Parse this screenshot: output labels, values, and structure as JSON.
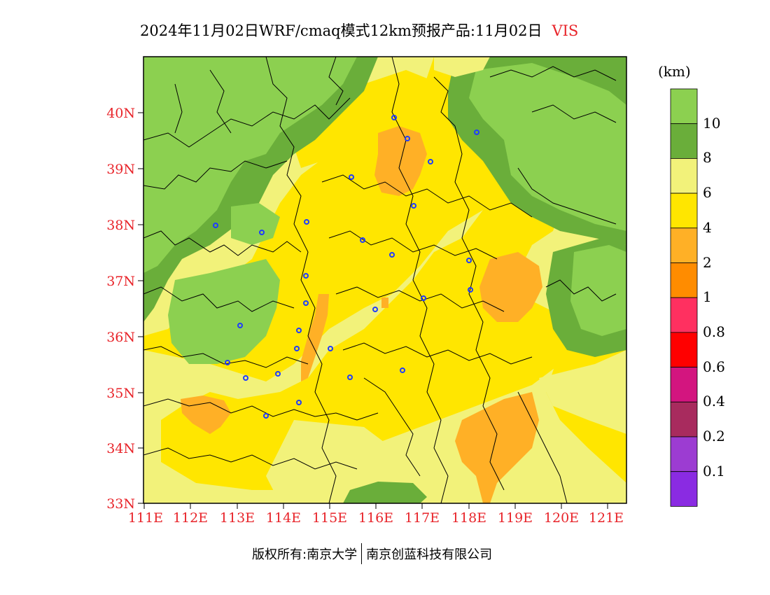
{
  "title": {
    "main": "2024年11月02日WRF/cmaq模式12km预报产品:11月02日",
    "variable": "VIS"
  },
  "map": {
    "lat_labels": [
      "40N",
      "39N",
      "38N",
      "37N",
      "36N",
      "35N",
      "34N",
      "33N"
    ],
    "lon_labels": [
      "111E",
      "112E",
      "113E",
      "114E",
      "115E",
      "116E",
      "117E",
      "118E",
      "119E",
      "120E",
      "121E"
    ],
    "lat_range": [
      33,
      41
    ],
    "lon_range": [
      111,
      121.4
    ]
  },
  "colorbar": {
    "unit": "(km)",
    "colors": [
      "#8cd050",
      "#6aae3a",
      "#f2f27a",
      "#ffe600",
      "#ffb026",
      "#ff8c00",
      "#ff3060",
      "#ff0000",
      "#d3157f",
      "#a82b5e",
      "#9c3cd2",
      "#8a2be2"
    ],
    "labels": [
      "10",
      "8",
      "6",
      "4",
      "2",
      "1",
      "0.8",
      "0.6",
      "0.4",
      "0.2",
      "0.1"
    ]
  },
  "footer": {
    "left": "版权所有:南京大学",
    "right": "南京创蓝科技有限公司"
  }
}
